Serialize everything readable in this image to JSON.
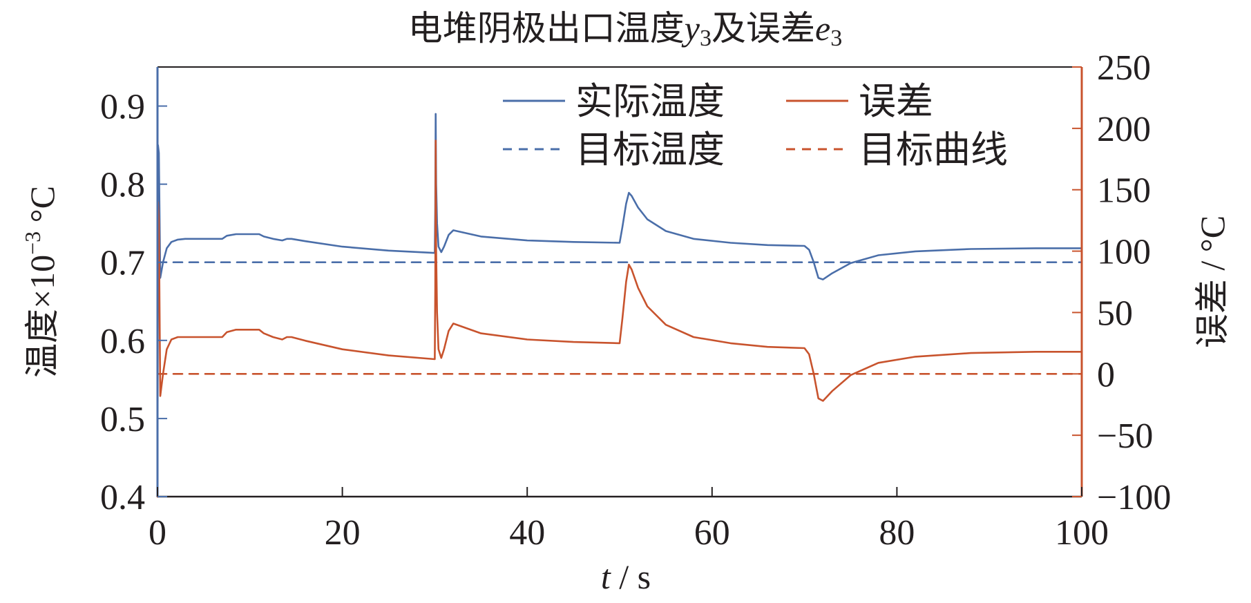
{
  "chart_data": {
    "type": "line",
    "title": {
      "prefix": "电堆阴极出口温度",
      "var1": "y",
      "sub1": "3",
      "middle": "及误差",
      "var2": "e",
      "sub2": "3"
    },
    "xlabel": {
      "var": "t",
      "rest": " / s"
    },
    "ylabel_left": {
      "text": "温度×10",
      "exp": "−3",
      "unit": " °C"
    },
    "ylabel_right": "误差 / °C",
    "xlim": [
      0,
      100
    ],
    "ylim_left": [
      0.4,
      0.95
    ],
    "ylim_right": [
      -100,
      250
    ],
    "x_ticks": [
      0,
      20,
      40,
      60,
      80,
      100
    ],
    "x_tick_labels": [
      "0",
      "20",
      "40",
      "60",
      "80",
      "100"
    ],
    "y_left_ticks": [
      0.4,
      0.5,
      0.6,
      0.7,
      0.8,
      0.9
    ],
    "y_left_tick_labels": [
      "0.4",
      "0.5",
      "0.6",
      "0.7",
      "0.8",
      "0.9"
    ],
    "y_right_ticks": [
      -100,
      -50,
      0,
      50,
      100,
      150,
      200,
      250
    ],
    "y_right_tick_labels": [
      "−100",
      "−50",
      "0",
      "50",
      "100",
      "150",
      "200",
      "250"
    ],
    "grid": false,
    "legend_position": "top-right",
    "colors": {
      "blue": "#4a6ea9",
      "orange": "#c8532d",
      "axis": "#231f20"
    },
    "series": [
      {
        "name": "实际温度",
        "axis": "left",
        "style": "solid",
        "color": "#4a6ea9",
        "x": [
          0,
          0.05,
          0.15,
          0.3,
          0.6,
          1,
          1.5,
          2.2,
          3,
          4.5,
          7,
          7.5,
          8.5,
          11,
          11.5,
          12.5,
          13.5,
          14,
          14.5,
          16,
          20,
          25,
          30,
          30.05,
          30.1,
          30.15,
          30.25,
          30.4,
          30.7,
          31,
          31.5,
          32,
          35,
          40,
          45,
          50,
          50.3,
          50.7,
          51,
          51.3,
          52,
          53,
          55,
          58,
          62,
          66,
          70,
          70.5,
          71,
          71.5,
          72,
          73,
          75,
          78,
          82,
          88,
          95,
          100
        ],
        "y": [
          0.4,
          0.85,
          0.84,
          0.68,
          0.7,
          0.718,
          0.726,
          0.729,
          0.73,
          0.73,
          0.73,
          0.734,
          0.736,
          0.736,
          0.733,
          0.73,
          0.728,
          0.73,
          0.73,
          0.727,
          0.72,
          0.715,
          0.712,
          0.77,
          0.89,
          0.8,
          0.75,
          0.72,
          0.713,
          0.72,
          0.735,
          0.741,
          0.733,
          0.728,
          0.726,
          0.725,
          0.745,
          0.775,
          0.789,
          0.785,
          0.77,
          0.755,
          0.74,
          0.73,
          0.725,
          0.722,
          0.721,
          0.716,
          0.7,
          0.68,
          0.678,
          0.686,
          0.699,
          0.709,
          0.714,
          0.717,
          0.718,
          0.718
        ]
      },
      {
        "name": "目标温度",
        "axis": "left",
        "style": "dashed",
        "color": "#4a6ea9",
        "x": [
          0,
          100
        ],
        "y": [
          0.7,
          0.7
        ]
      },
      {
        "name": "误差",
        "axis": "right",
        "style": "solid",
        "color": "#c8532d",
        "x": [
          0,
          0.05,
          0.15,
          0.3,
          0.6,
          1,
          1.5,
          2.2,
          3,
          4.5,
          7,
          7.5,
          8.5,
          11,
          11.5,
          12.5,
          13.5,
          14,
          14.5,
          16,
          20,
          25,
          30,
          30.05,
          30.1,
          30.15,
          30.25,
          30.4,
          30.7,
          31,
          31.5,
          32,
          35,
          40,
          45,
          50,
          50.3,
          50.7,
          51,
          51.3,
          52,
          53,
          55,
          58,
          62,
          66,
          70,
          70.5,
          71,
          71.5,
          72,
          73,
          75,
          78,
          82,
          88,
          95,
          100
        ],
        "y": [
          -100,
          140,
          125,
          -18,
          0,
          20,
          28,
          30,
          30,
          30,
          30,
          34,
          36,
          36,
          33,
          30,
          28,
          30,
          30,
          27,
          20,
          15,
          12,
          70,
          190,
          100,
          50,
          20,
          13,
          20,
          35,
          41,
          33,
          28,
          26,
          25,
          45,
          75,
          89,
          85,
          70,
          55,
          40,
          30,
          25,
          22,
          21,
          16,
          0,
          -20,
          -22,
          -14,
          -1,
          9,
          14,
          17,
          18,
          18
        ]
      },
      {
        "name": "目标曲线",
        "axis": "right",
        "style": "dashed",
        "color": "#c8532d",
        "x": [
          0,
          100
        ],
        "y": [
          0,
          0
        ]
      }
    ]
  }
}
